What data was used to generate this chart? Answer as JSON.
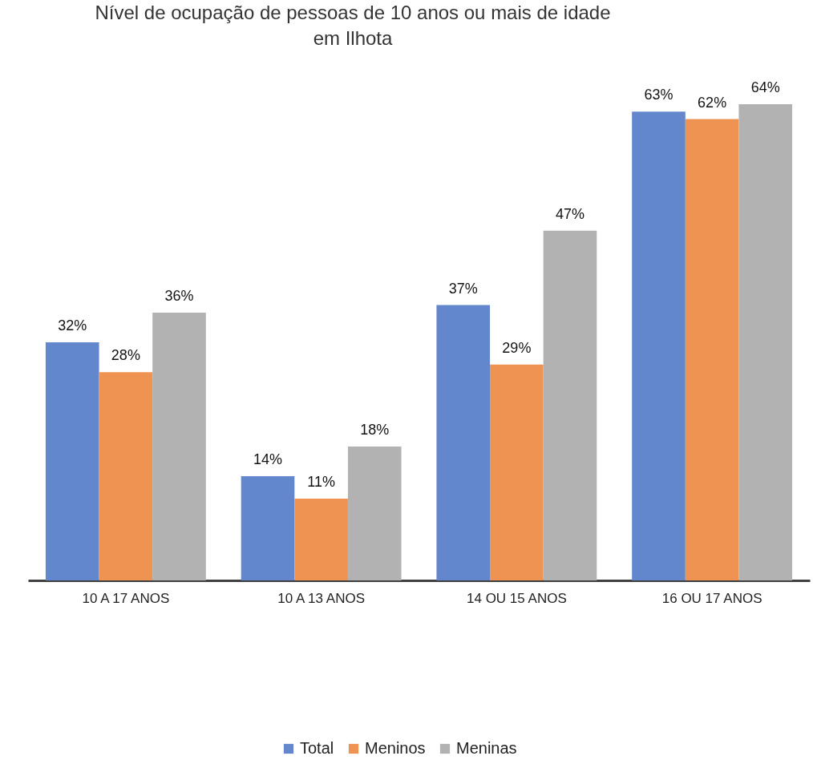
{
  "chart_data": {
    "type": "bar",
    "title": "Nível de ocupação de pessoas de 10 anos ou mais de idade em Ilhota",
    "categories": [
      "10 A 17 ANOS",
      "10 A 13 ANOS",
      "14 OU 15 ANOS",
      "16 OU 17 ANOS"
    ],
    "series": [
      {
        "name": "Total",
        "color": "#6287cc",
        "values": [
          32,
          14,
          37,
          63
        ],
        "value_labels": [
          "32%",
          "14%",
          "37%",
          "63%"
        ]
      },
      {
        "name": "Meninos",
        "color": "#ef9352",
        "values": [
          28,
          11,
          29,
          62
        ],
        "value_labels": [
          "28%",
          "11%",
          "29%",
          "62%"
        ]
      },
      {
        "name": "Meninas",
        "color": "#b2b2b2",
        "values": [
          36,
          18,
          47,
          64
        ],
        "value_labels": [
          "36%",
          "18%",
          "47%",
          "64%"
        ]
      }
    ],
    "legend": "bottom",
    "grid": false
  }
}
